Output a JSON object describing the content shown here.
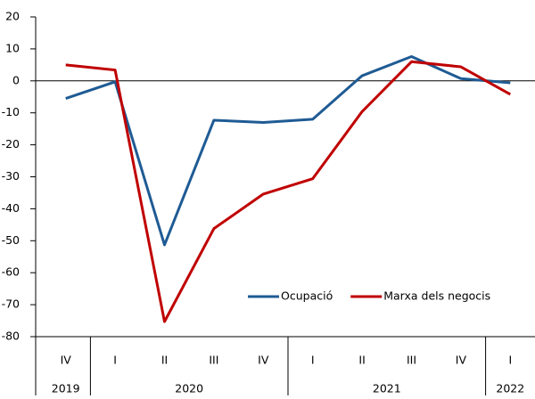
{
  "chart_data": {
    "type": "line",
    "categories": [
      "IV",
      "I",
      "II",
      "III",
      "IV",
      "I",
      "II",
      "III",
      "IV",
      "I"
    ],
    "groups": [
      {
        "label": "2019",
        "span": 1
      },
      {
        "label": "2020",
        "span": 4
      },
      {
        "label": "2021",
        "span": 4
      },
      {
        "label": "2022",
        "span": 1
      }
    ],
    "series": [
      {
        "name": "Ocupació",
        "color": "#1f5b94",
        "values": [
          -5.5,
          -0.3,
          -51.3,
          -12.3,
          -13,
          -12,
          1.6,
          7.6,
          0.7,
          -0.6
        ]
      },
      {
        "name": "Marxa dels negocis",
        "color": "#c00000",
        "values": [
          5,
          3.4,
          -75.3,
          -46.2,
          -35.4,
          -30.6,
          -9.6,
          6,
          4.4,
          -4.2
        ]
      }
    ],
    "ylim": [
      -80,
      20
    ],
    "yticks": [
      -80,
      -70,
      -60,
      -50,
      -40,
      -30,
      -20,
      -10,
      0,
      10,
      20
    ],
    "legend": "lower right"
  }
}
